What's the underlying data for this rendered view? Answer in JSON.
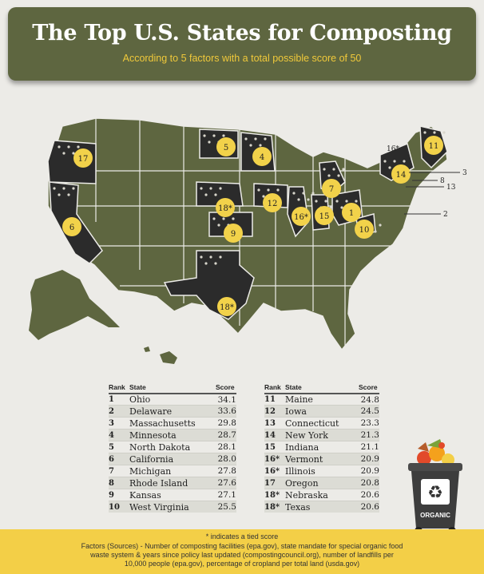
{
  "header": {
    "title": "The Top U.S. States for Composting",
    "subtitle": "According to 5 factors with a total possible score of 50"
  },
  "colors": {
    "banner": "#5e6640",
    "state_fill": "#5e6640",
    "ranked_fill": "#2b2b2b",
    "badge": "#f2d24a",
    "footer": "#f3cf47",
    "subtitle": "#f0c93a"
  },
  "table": {
    "headers": {
      "rank": "Rank",
      "state": "State",
      "score": "Score"
    },
    "left": [
      {
        "rank": "1",
        "state": "Ohio",
        "score": "34.1"
      },
      {
        "rank": "2",
        "state": "Delaware",
        "score": "33.6"
      },
      {
        "rank": "3",
        "state": "Massachusetts",
        "score": "29.8"
      },
      {
        "rank": "4",
        "state": "Minnesota",
        "score": "28.7"
      },
      {
        "rank": "5",
        "state": "North Dakota",
        "score": "28.1"
      },
      {
        "rank": "6",
        "state": "California",
        "score": "28.0"
      },
      {
        "rank": "7",
        "state": "Michigan",
        "score": "27.8"
      },
      {
        "rank": "8",
        "state": "Rhode Island",
        "score": "27.6"
      },
      {
        "rank": "9",
        "state": "Kansas",
        "score": "27.1"
      },
      {
        "rank": "10",
        "state": "West Virginia",
        "score": "25.5"
      }
    ],
    "right": [
      {
        "rank": "11",
        "state": "Maine",
        "score": "24.8"
      },
      {
        "rank": "12",
        "state": "Iowa",
        "score": "24.5"
      },
      {
        "rank": "13",
        "state": "Connecticut",
        "score": "23.3"
      },
      {
        "rank": "14",
        "state": "New York",
        "score": "21.3"
      },
      {
        "rank": "15",
        "state": "Indiana",
        "score": "21.1"
      },
      {
        "rank": "16*",
        "state": "Vermont",
        "score": "20.9"
      },
      {
        "rank": "16*",
        "state": "Illinois",
        "score": "20.9"
      },
      {
        "rank": "17",
        "state": "Oregon",
        "score": "20.8"
      },
      {
        "rank": "18*",
        "state": "Nebraska",
        "score": "20.6"
      },
      {
        "rank": "18*",
        "state": "Texas",
        "score": "20.6"
      }
    ]
  },
  "chart_data": {
    "type": "table",
    "title": "The Top U.S. States for Composting",
    "subtitle": "According to 5 factors with a total possible score of 50",
    "columns": [
      "Rank",
      "State",
      "Score"
    ],
    "map_badges": [
      "1",
      "2",
      "3",
      "4",
      "5",
      "6",
      "7",
      "8",
      "9",
      "10",
      "11",
      "12",
      "13",
      "14",
      "15",
      "16*",
      "16*",
      "17",
      "18*",
      "18*"
    ]
  },
  "bin": {
    "label": "ORGANIC"
  },
  "footer": {
    "note": "* indicates a tied score",
    "line1": "Factors (Sources) - Number of composting facilities (epa.gov), state mandate for special organic food",
    "line2": "waste system & years since policy last updated (compostingcouncil.org), number of landfills per",
    "line3": "10,000 people (epa.gov), percentage of cropland per total land (usda.gov)"
  }
}
